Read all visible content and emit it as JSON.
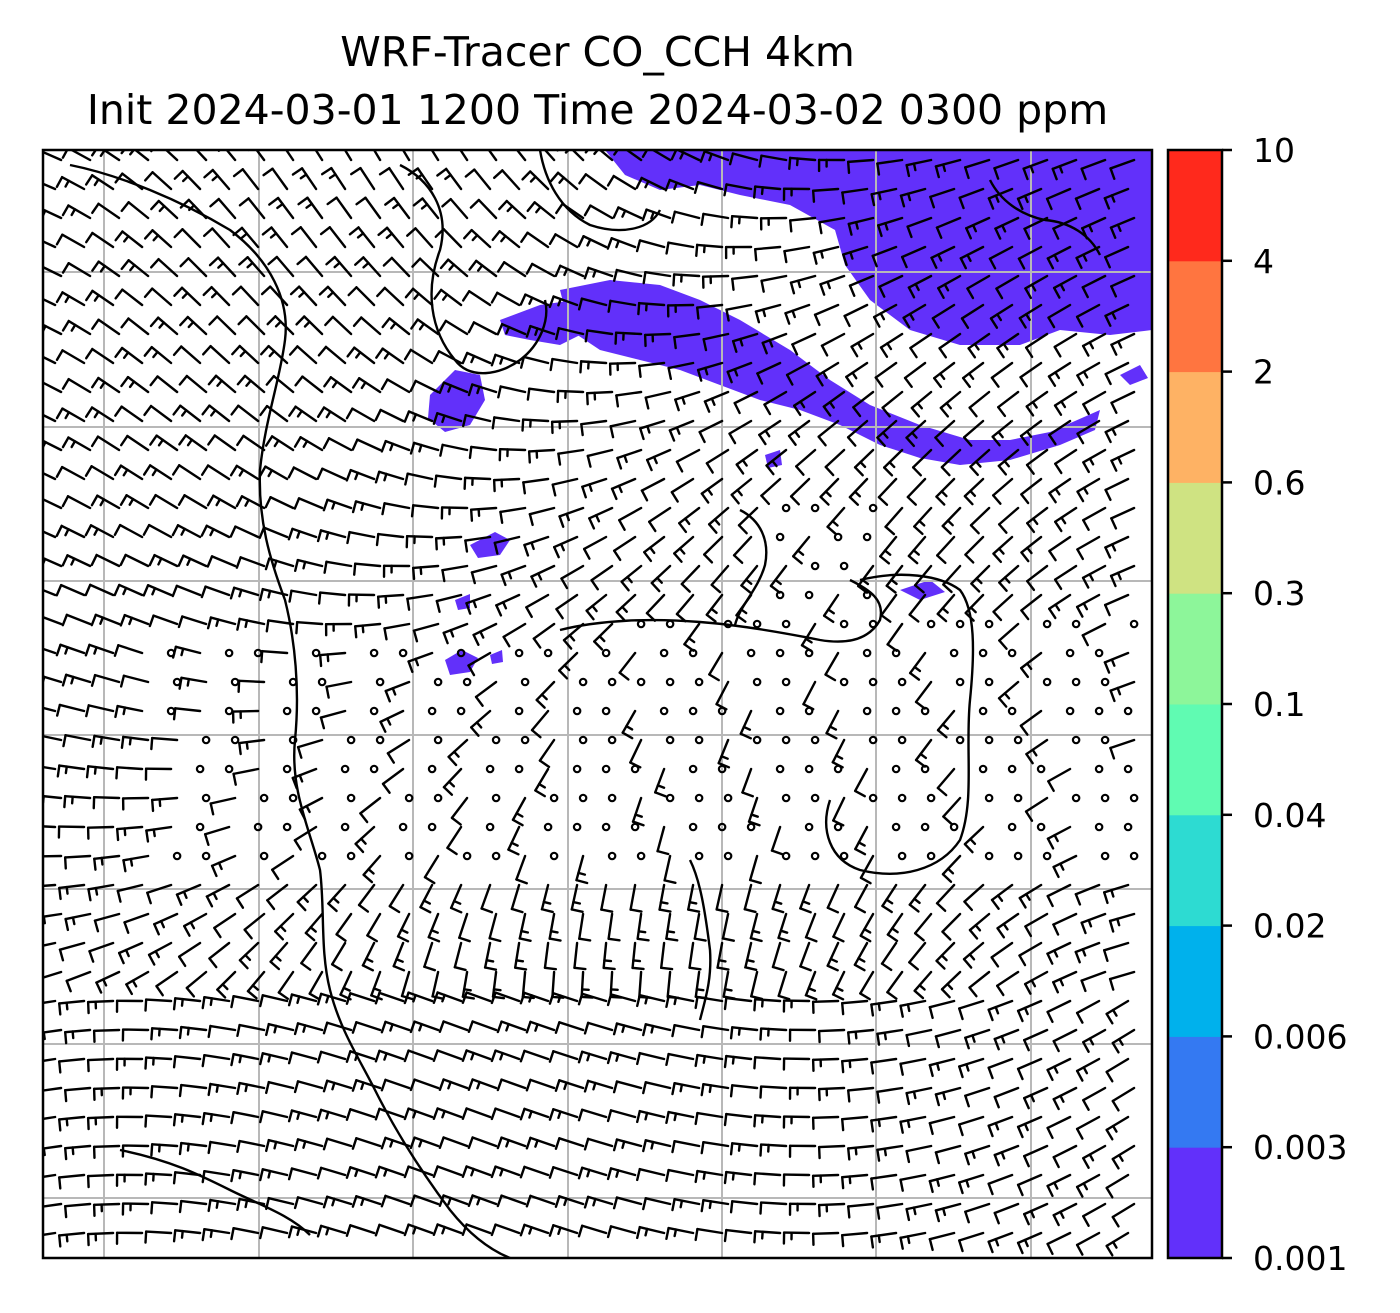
{
  "title": {
    "line1": "WRF-Tracer CO_CCH 4km",
    "line2": "Init 2024-03-01 1200 Time 2024-03-02 0300 ppm"
  },
  "colorbar": {
    "levels": [
      "0.001",
      "0.003",
      "0.006",
      "0.02",
      "0.04",
      "0.1",
      "0.3",
      "0.6",
      "2",
      "4",
      "10"
    ],
    "colors": [
      "#6230fa",
      "#3479f2",
      "#00b1ec",
      "#2ddbd2",
      "#60fbb2",
      "#8df69a",
      "#cfe382",
      "#feb264",
      "#ff7540",
      "#ff291c"
    ]
  },
  "colors": {
    "plume": "#6230fa",
    "grid": "#b8b8b8",
    "coastline": "#000000"
  }
}
